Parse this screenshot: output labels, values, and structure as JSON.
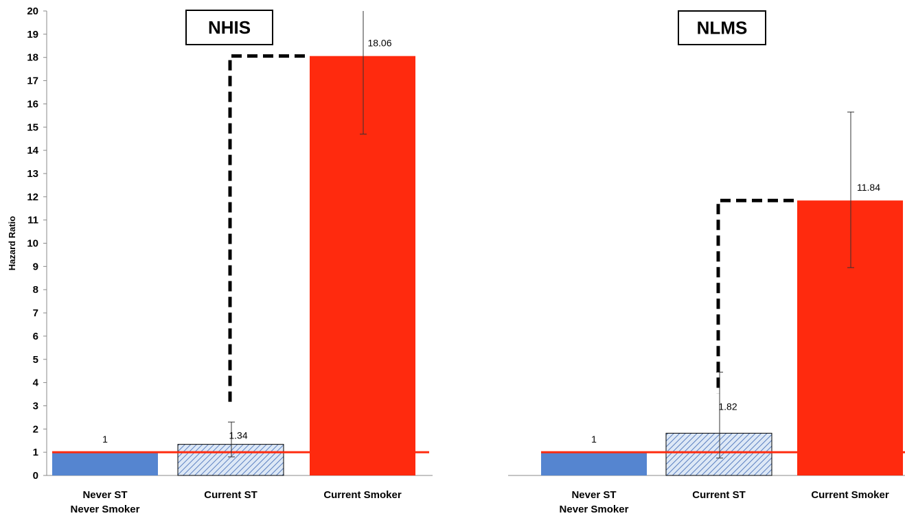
{
  "chart_data": {
    "type": "bar",
    "ylabel": "Hazard Ratio",
    "ylim": [
      0,
      20
    ],
    "yticks": [
      0,
      1,
      2,
      3,
      4,
      5,
      6,
      7,
      8,
      9,
      10,
      11,
      12,
      13,
      14,
      15,
      16,
      17,
      18,
      19,
      20
    ],
    "reference_line": 1,
    "grid": false,
    "panels": [
      {
        "title": "NHIS",
        "categories": [
          [
            "Never ST",
            "Never Smoker"
          ],
          [
            "Current ST"
          ],
          [
            "Current Smoker"
          ]
        ],
        "values": [
          1,
          1.34,
          18.06
        ],
        "value_labels": [
          "1",
          "1.34",
          "18.06"
        ],
        "error_low": [
          null,
          0.8,
          14.7
        ],
        "error_high": [
          null,
          2.3,
          20.0
        ],
        "bar_styles": [
          "solid-blue",
          "hatched-blue",
          "solid-red"
        ]
      },
      {
        "title": "NLMS",
        "categories": [
          [
            "Never ST",
            "Never Smoker"
          ],
          [
            "Current ST"
          ],
          [
            "Current Smoker"
          ]
        ],
        "values": [
          1,
          1.82,
          11.84
        ],
        "value_labels": [
          "1",
          "1.82",
          "11.84"
        ],
        "error_low": [
          null,
          0.75,
          8.95
        ],
        "error_high": [
          null,
          4.45,
          15.65
        ],
        "bar_styles": [
          "solid-blue",
          "hatched-blue",
          "solid-red"
        ]
      }
    ]
  },
  "colors": {
    "never": "#5585D0",
    "current_st_fill": "#dde8f6",
    "current_st_hatch": "#5a7fc0",
    "current_smoker": "#FF2A0E",
    "reference_line": "#FF2A0E",
    "axis": "#888888",
    "dashed": "#000000"
  }
}
